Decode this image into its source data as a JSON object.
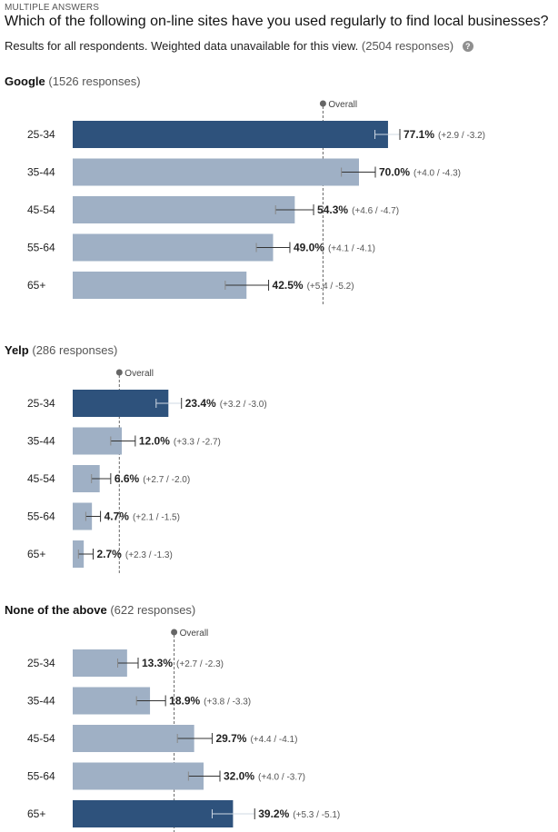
{
  "header": {
    "kicker": "MULTIPLE ANSWERS",
    "question": "Which of the following on-line sites have you used regularly to find local businesses?",
    "subtitle": "Results for all respondents. Weighted data unavailable for this view.",
    "subtitle_count": "(2504 responses)"
  },
  "overall_label": "Overall",
  "colors": {
    "highlight": "#2e527c",
    "bar": "#9fb0c5",
    "errorbar": "#333333",
    "overall_line": "#666666"
  },
  "chart_data": [
    {
      "type": "bar",
      "orientation": "horizontal",
      "title": "Google",
      "responses": "(1526 responses)",
      "categories": [
        "25-34",
        "35-44",
        "45-54",
        "55-64",
        "65+"
      ],
      "values": [
        77.1,
        70.0,
        54.3,
        49.0,
        42.5
      ],
      "value_labels": [
        "77.1%",
        "70.0%",
        "54.3%",
        "49.0%",
        "42.5%"
      ],
      "moe_plus": [
        2.9,
        4.0,
        4.6,
        4.1,
        5.4
      ],
      "moe_minus": [
        3.2,
        4.3,
        4.7,
        4.1,
        5.2
      ],
      "moe_labels": [
        "(+2.9 / -3.2)",
        "(+4.0 / -4.3)",
        "(+4.6 / -4.7)",
        "(+4.1 / -4.1)",
        "(+5.4 / -5.2)"
      ],
      "highlight_index": 0,
      "overall": 61.2,
      "xlim": [
        0,
        100
      ]
    },
    {
      "type": "bar",
      "orientation": "horizontal",
      "title": "Yelp",
      "responses": "(286 responses)",
      "categories": [
        "25-34",
        "35-44",
        "45-54",
        "55-64",
        "65+"
      ],
      "values": [
        23.4,
        12.0,
        6.6,
        4.7,
        2.7
      ],
      "value_labels": [
        "23.4%",
        "12.0%",
        "6.6%",
        "4.7%",
        "2.7%"
      ],
      "moe_plus": [
        3.2,
        3.3,
        2.7,
        2.1,
        2.3
      ],
      "moe_minus": [
        3.0,
        2.7,
        2.0,
        1.5,
        1.3
      ],
      "moe_labels": [
        "(+3.2 / -3.0)",
        "(+3.3 / -2.7)",
        "(+2.7 / -2.0)",
        "(+2.1 / -1.5)",
        "(+2.3 / -1.3)"
      ],
      "highlight_index": 0,
      "overall": 11.4,
      "xlim": [
        0,
        100
      ]
    },
    {
      "type": "bar",
      "orientation": "horizontal",
      "title": "None of the above",
      "responses": "(622 responses)",
      "categories": [
        "25-34",
        "35-44",
        "45-54",
        "55-64",
        "65+"
      ],
      "values": [
        13.3,
        18.9,
        29.7,
        32.0,
        39.2
      ],
      "value_labels": [
        "13.3%",
        "18.9%",
        "29.7%",
        "32.0%",
        "39.2%"
      ],
      "moe_plus": [
        2.7,
        3.8,
        4.4,
        4.0,
        5.3
      ],
      "moe_minus": [
        2.3,
        3.3,
        4.1,
        3.7,
        5.1
      ],
      "moe_labels": [
        "(+2.7 / -2.3)",
        "(+3.8 / -3.3)",
        "(+4.4 / -4.1)",
        "(+4.0 / -3.7)",
        "(+5.3 / -5.1)"
      ],
      "highlight_index": 4,
      "overall": 24.8,
      "xlim": [
        0,
        100
      ]
    }
  ]
}
